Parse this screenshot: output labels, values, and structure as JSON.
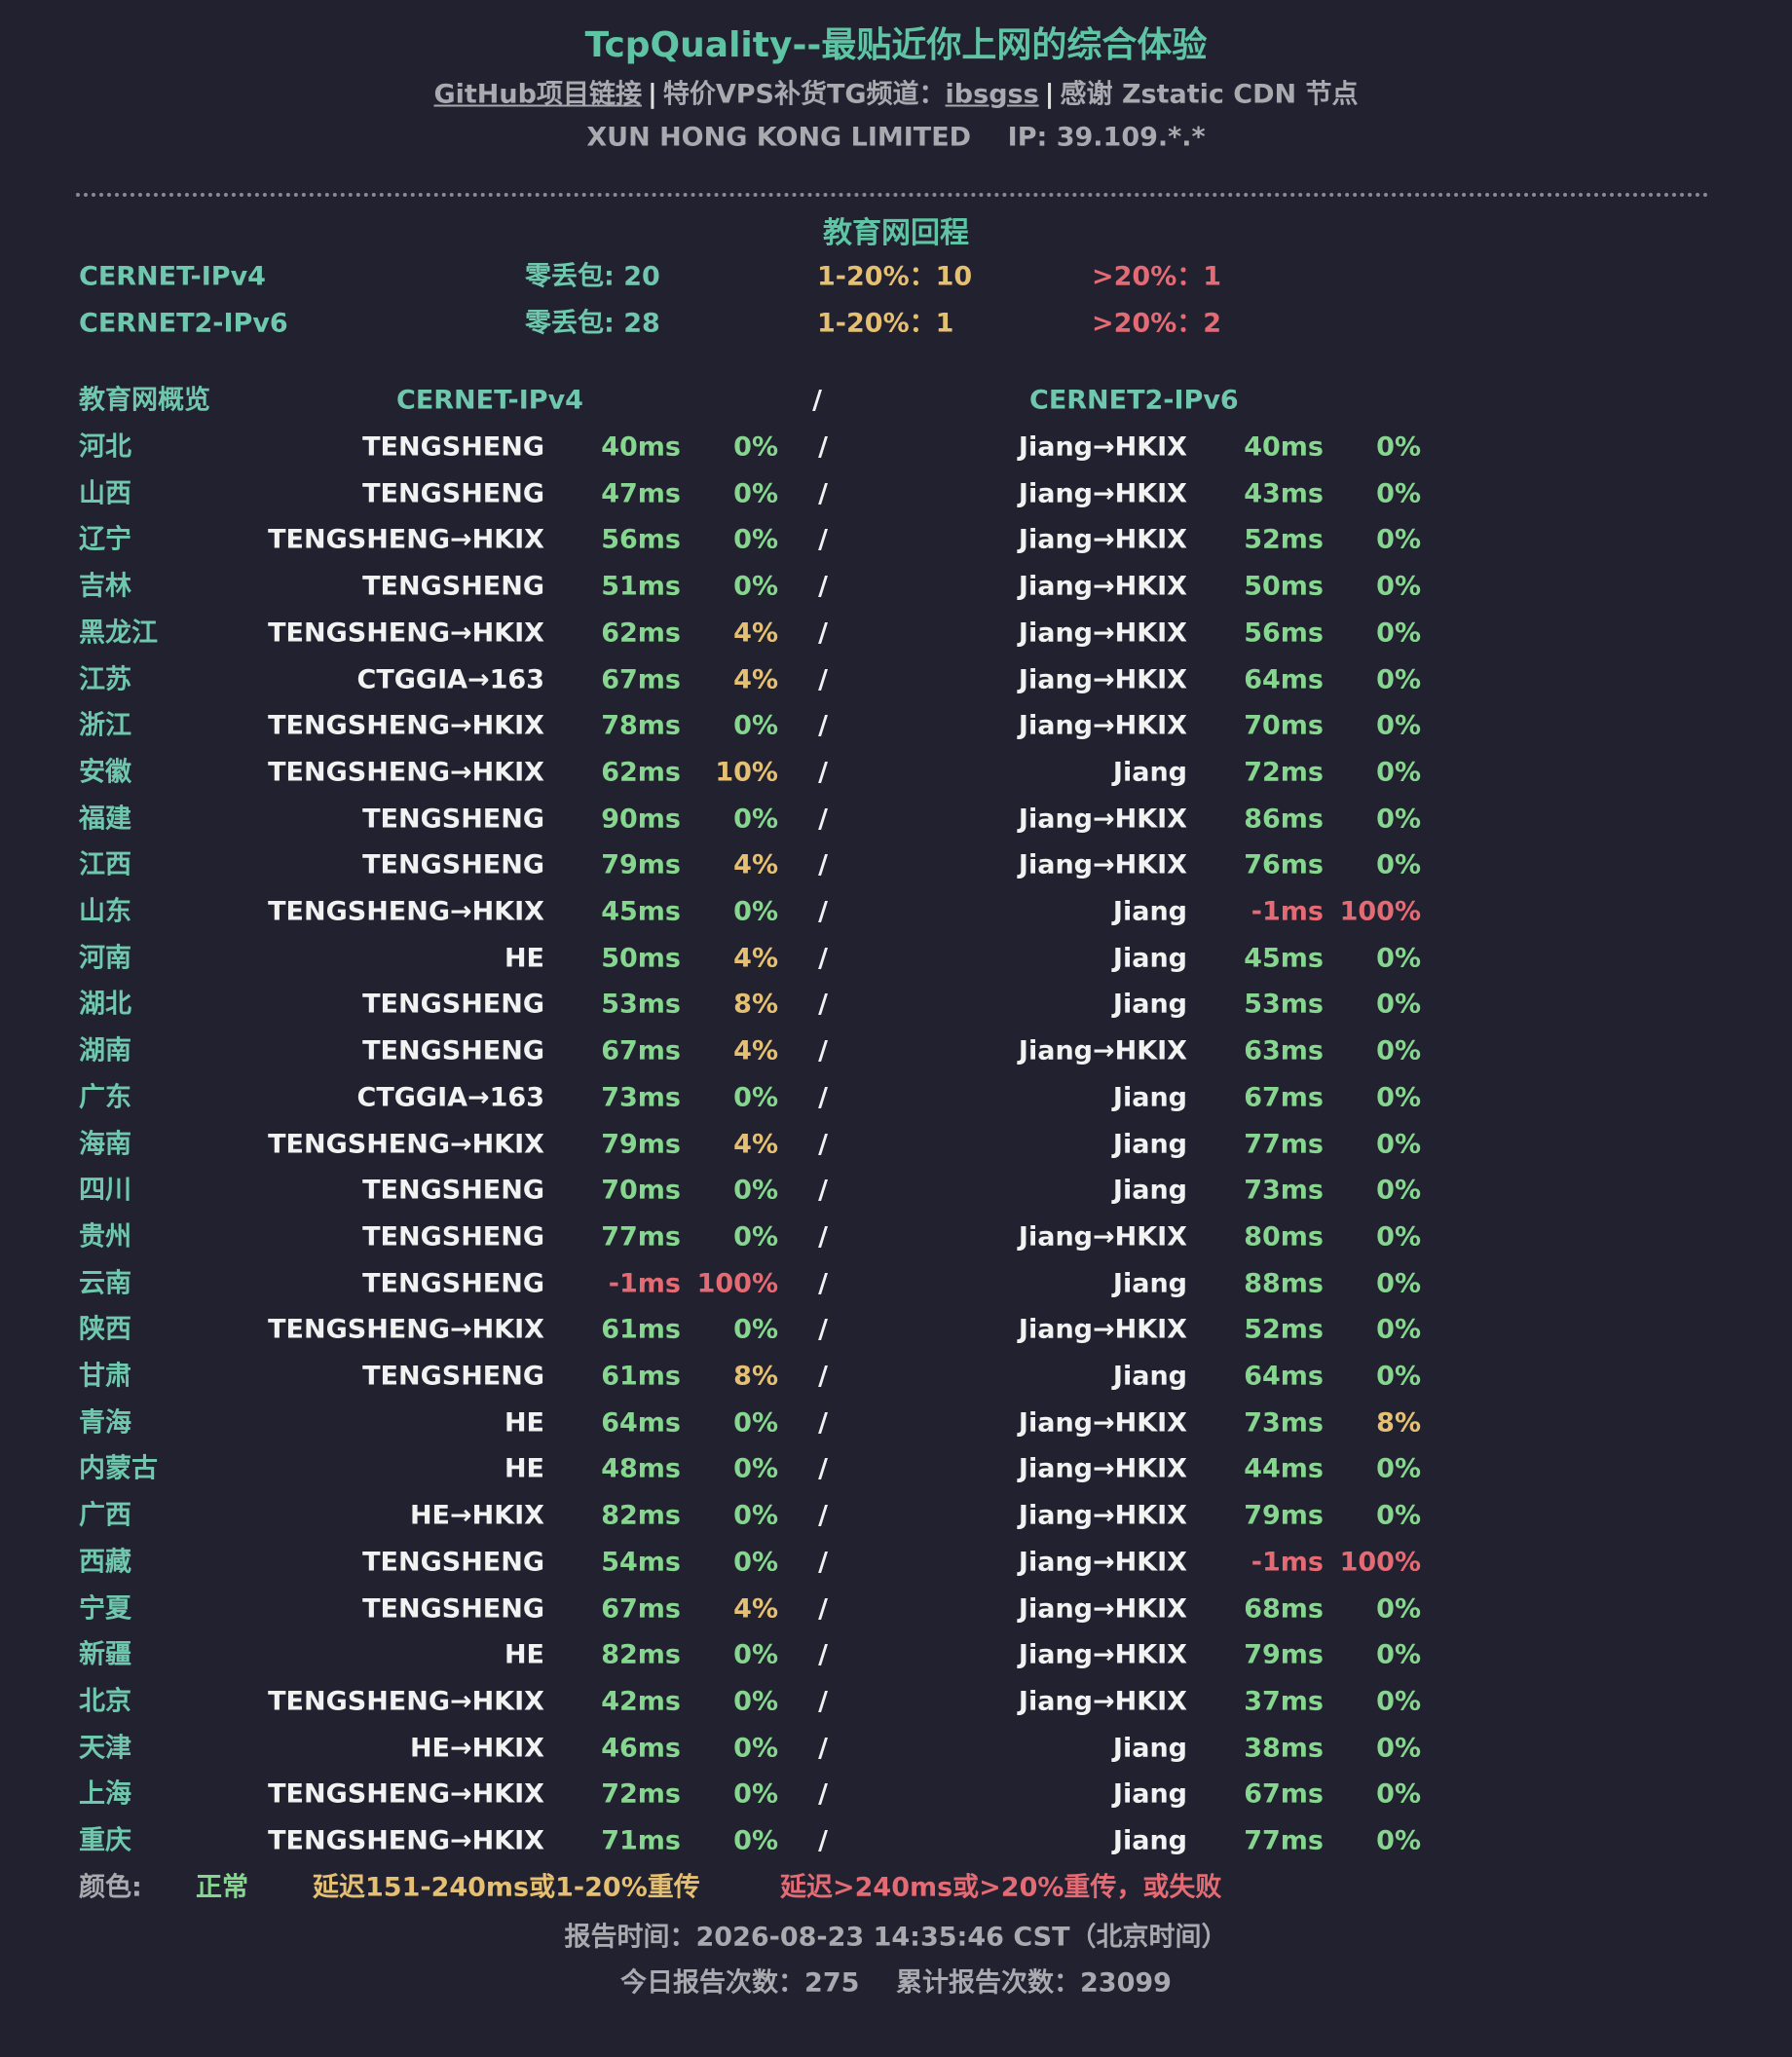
{
  "header": {
    "title": "TcpQuality--最贴近你上网的综合体验",
    "links": [
      "GitHub项目链接",
      "|",
      "特价VPS补货TG频道：",
      "ibsgss",
      "|",
      "感谢 Zstatic CDN 节点"
    ],
    "isp": "XUN HONG KONG LIMITED",
    "ip": "IP: 39.109.*.*"
  },
  "section_title": "教育网回程",
  "summary": [
    [
      "CERNET-IPv4",
      "零丢包: 20",
      "1-20%：10",
      ">20%：1"
    ],
    [
      "CERNET2-IPv6",
      "零丢包: 28",
      "1-20%：1",
      ">20%：2"
    ]
  ],
  "table": {
    "columns": [
      "教育网概览",
      "CERNET-IPv4",
      "/",
      "CERNET2-IPv6"
    ],
    "rows": [
      [
        "河北",
        "TENGSHENG",
        "40ms",
        "0%",
        "/",
        "Jiang→HKIX",
        "40ms",
        "0%"
      ],
      [
        "山西",
        "TENGSHENG",
        "47ms",
        "0%",
        "/",
        "Jiang→HKIX",
        "43ms",
        "0%"
      ],
      [
        "辽宁",
        "TENGSHENG→HKIX",
        "56ms",
        "0%",
        "/",
        "Jiang→HKIX",
        "52ms",
        "0%"
      ],
      [
        "吉林",
        "TENGSHENG",
        "51ms",
        "0%",
        "/",
        "Jiang→HKIX",
        "50ms",
        "0%"
      ],
      [
        "黑龙江",
        "TENGSHENG→HKIX",
        "62ms",
        "4%",
        "/",
        "Jiang→HKIX",
        "56ms",
        "0%"
      ],
      [
        "江苏",
        "CTGGIA→163",
        "67ms",
        "4%",
        "/",
        "Jiang→HKIX",
        "64ms",
        "0%"
      ],
      [
        "浙江",
        "TENGSHENG→HKIX",
        "78ms",
        "0%",
        "/",
        "Jiang→HKIX",
        "70ms",
        "0%"
      ],
      [
        "安徽",
        "TENGSHENG→HKIX",
        "62ms",
        "10%",
        "/",
        "Jiang",
        "72ms",
        "0%"
      ],
      [
        "福建",
        "TENGSHENG",
        "90ms",
        "0%",
        "/",
        "Jiang→HKIX",
        "86ms",
        "0%"
      ],
      [
        "江西",
        "TENGSHENG",
        "79ms",
        "4%",
        "/",
        "Jiang→HKIX",
        "76ms",
        "0%"
      ],
      [
        "山东",
        "TENGSHENG→HKIX",
        "45ms",
        "0%",
        "/",
        "Jiang",
        "-1ms",
        "100%"
      ],
      [
        "河南",
        "HE",
        "50ms",
        "4%",
        "/",
        "Jiang",
        "45ms",
        "0%"
      ],
      [
        "湖北",
        "TENGSHENG",
        "53ms",
        "8%",
        "/",
        "Jiang",
        "53ms",
        "0%"
      ],
      [
        "湖南",
        "TENGSHENG",
        "67ms",
        "4%",
        "/",
        "Jiang→HKIX",
        "63ms",
        "0%"
      ],
      [
        "广东",
        "CTGGIA→163",
        "73ms",
        "0%",
        "/",
        "Jiang",
        "67ms",
        "0%"
      ],
      [
        "海南",
        "TENGSHENG→HKIX",
        "79ms",
        "4%",
        "/",
        "Jiang",
        "77ms",
        "0%"
      ],
      [
        "四川",
        "TENGSHENG",
        "70ms",
        "0%",
        "/",
        "Jiang",
        "73ms",
        "0%"
      ],
      [
        "贵州",
        "TENGSHENG",
        "77ms",
        "0%",
        "/",
        "Jiang→HKIX",
        "80ms",
        "0%"
      ],
      [
        "云南",
        "TENGSHENG",
        "-1ms",
        "100%",
        "/",
        "Jiang",
        "88ms",
        "0%"
      ],
      [
        "陕西",
        "TENGSHENG→HKIX",
        "61ms",
        "0%",
        "/",
        "Jiang→HKIX",
        "52ms",
        "0%"
      ],
      [
        "甘肃",
        "TENGSHENG",
        "61ms",
        "8%",
        "/",
        "Jiang",
        "64ms",
        "0%"
      ],
      [
        "青海",
        "HE",
        "64ms",
        "0%",
        "/",
        "Jiang→HKIX",
        "73ms",
        "8%"
      ],
      [
        "内蒙古",
        "HE",
        "48ms",
        "0%",
        "/",
        "Jiang→HKIX",
        "44ms",
        "0%"
      ],
      [
        "广西",
        "HE→HKIX",
        "82ms",
        "0%",
        "/",
        "Jiang→HKIX",
        "79ms",
        "0%"
      ],
      [
        "西藏",
        "TENGSHENG",
        "54ms",
        "0%",
        "/",
        "Jiang→HKIX",
        "-1ms",
        "100%"
      ],
      [
        "宁夏",
        "TENGSHENG",
        "67ms",
        "4%",
        "/",
        "Jiang→HKIX",
        "68ms",
        "0%"
      ],
      [
        "新疆",
        "HE",
        "82ms",
        "0%",
        "/",
        "Jiang→HKIX",
        "79ms",
        "0%"
      ],
      [
        "北京",
        "TENGSHENG→HKIX",
        "42ms",
        "0%",
        "/",
        "Jiang→HKIX",
        "37ms",
        "0%"
      ],
      [
        "天津",
        "HE→HKIX",
        "46ms",
        "0%",
        "/",
        "Jiang",
        "38ms",
        "0%"
      ],
      [
        "上海",
        "TENGSHENG→HKIX",
        "72ms",
        "0%",
        "/",
        "Jiang",
        "67ms",
        "0%"
      ],
      [
        "重庆",
        "TENGSHENG→HKIX",
        "71ms",
        "0%",
        "/",
        "Jiang",
        "77ms",
        "0%"
      ]
    ]
  },
  "legend": {
    "label": "颜色:",
    "items": [
      {
        "label": "正常",
        "color": "#86d68f"
      },
      {
        "label": "延迟151-240ms或1-20%重传",
        "color": "#e5bf72"
      },
      {
        "label": "延迟>240ms或>20%重传，或失败",
        "color": "#e46a74"
      }
    ]
  },
  "footer": {
    "report_time": "报告时间：2026-08-23 14:35:46 CST（北京时间）",
    "today": "今日报告次数：275",
    "total": "累计报告次数：23099"
  }
}
